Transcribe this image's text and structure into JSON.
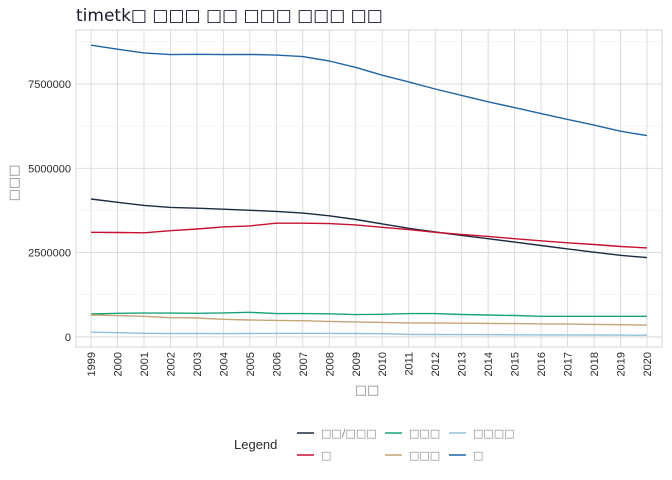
{
  "chart_data": {
    "type": "line",
    "title": "timetk□ □□□ □□ □□□ □□□ □□",
    "xlabel": "□□",
    "ylabel": "□□□",
    "ylim": [
      -300000,
      9100000
    ],
    "yticks": [
      0,
      2500000,
      5000000,
      7500000
    ],
    "ytick_labels": [
      "0",
      "2500000",
      "5000000",
      "7500000"
    ],
    "x": [
      "1999",
      "2000",
      "2001",
      "2002",
      "2003",
      "2004",
      "2005",
      "2006",
      "2007",
      "2008",
      "2009",
      "2010",
      "2011",
      "2012",
      "2013",
      "2014",
      "2015",
      "2016",
      "2017",
      "2018",
      "2019",
      "2020"
    ],
    "grid": true,
    "legend_title": "Legend",
    "legend_position": "bottom",
    "series": [
      {
        "name": "□□/□□□",
        "color": "#1b2a41",
        "values": [
          4090000,
          3990000,
          3900000,
          3840000,
          3815000,
          3785000,
          3755000,
          3720000,
          3670000,
          3590000,
          3480000,
          3350000,
          3220000,
          3110000,
          3010000,
          2910000,
          2810000,
          2710000,
          2610000,
          2510000,
          2420000,
          2350000
        ]
      },
      {
        "name": "□",
        "color": "#c8102e",
        "values": [
          3100000,
          3095000,
          3085000,
          3150000,
          3200000,
          3260000,
          3290000,
          3370000,
          3370000,
          3360000,
          3320000,
          3250000,
          3180000,
          3100000,
          3040000,
          2980000,
          2910000,
          2850000,
          2790000,
          2740000,
          2680000,
          2640000
        ]
      },
      {
        "name": "□□□",
        "color": "#1aa37a",
        "values": [
          680000,
          700000,
          705000,
          705000,
          700000,
          710000,
          730000,
          690000,
          690000,
          685000,
          660000,
          670000,
          690000,
          690000,
          665000,
          650000,
          635000,
          610000,
          610000,
          610000,
          610000,
          610000
        ]
      },
      {
        "name": "□□□",
        "color": "#c4a676",
        "values": [
          650000,
          630000,
          610000,
          570000,
          560000,
          520000,
          500000,
          490000,
          480000,
          460000,
          445000,
          430000,
          415000,
          410000,
          405000,
          400000,
          395000,
          385000,
          380000,
          370000,
          360000,
          350000
        ]
      },
      {
        "name": "□□□□",
        "color": "#8fbfdc",
        "values": [
          140000,
          125000,
          105000,
          100000,
          100000,
          98000,
          100000,
          102000,
          105000,
          104000,
          100000,
          95000,
          75000,
          70000,
          68000,
          65000,
          62000,
          60000,
          58000,
          55000,
          52000,
          50000
        ]
      },
      {
        "name": "□",
        "color": "#1f65a6",
        "values": [
          8650000,
          8530000,
          8420000,
          8370000,
          8380000,
          8370000,
          8375000,
          8355000,
          8310000,
          8180000,
          7990000,
          7760000,
          7560000,
          7350000,
          7160000,
          6970000,
          6800000,
          6620000,
          6450000,
          6280000,
          6100000,
          5970000
        ]
      }
    ]
  }
}
